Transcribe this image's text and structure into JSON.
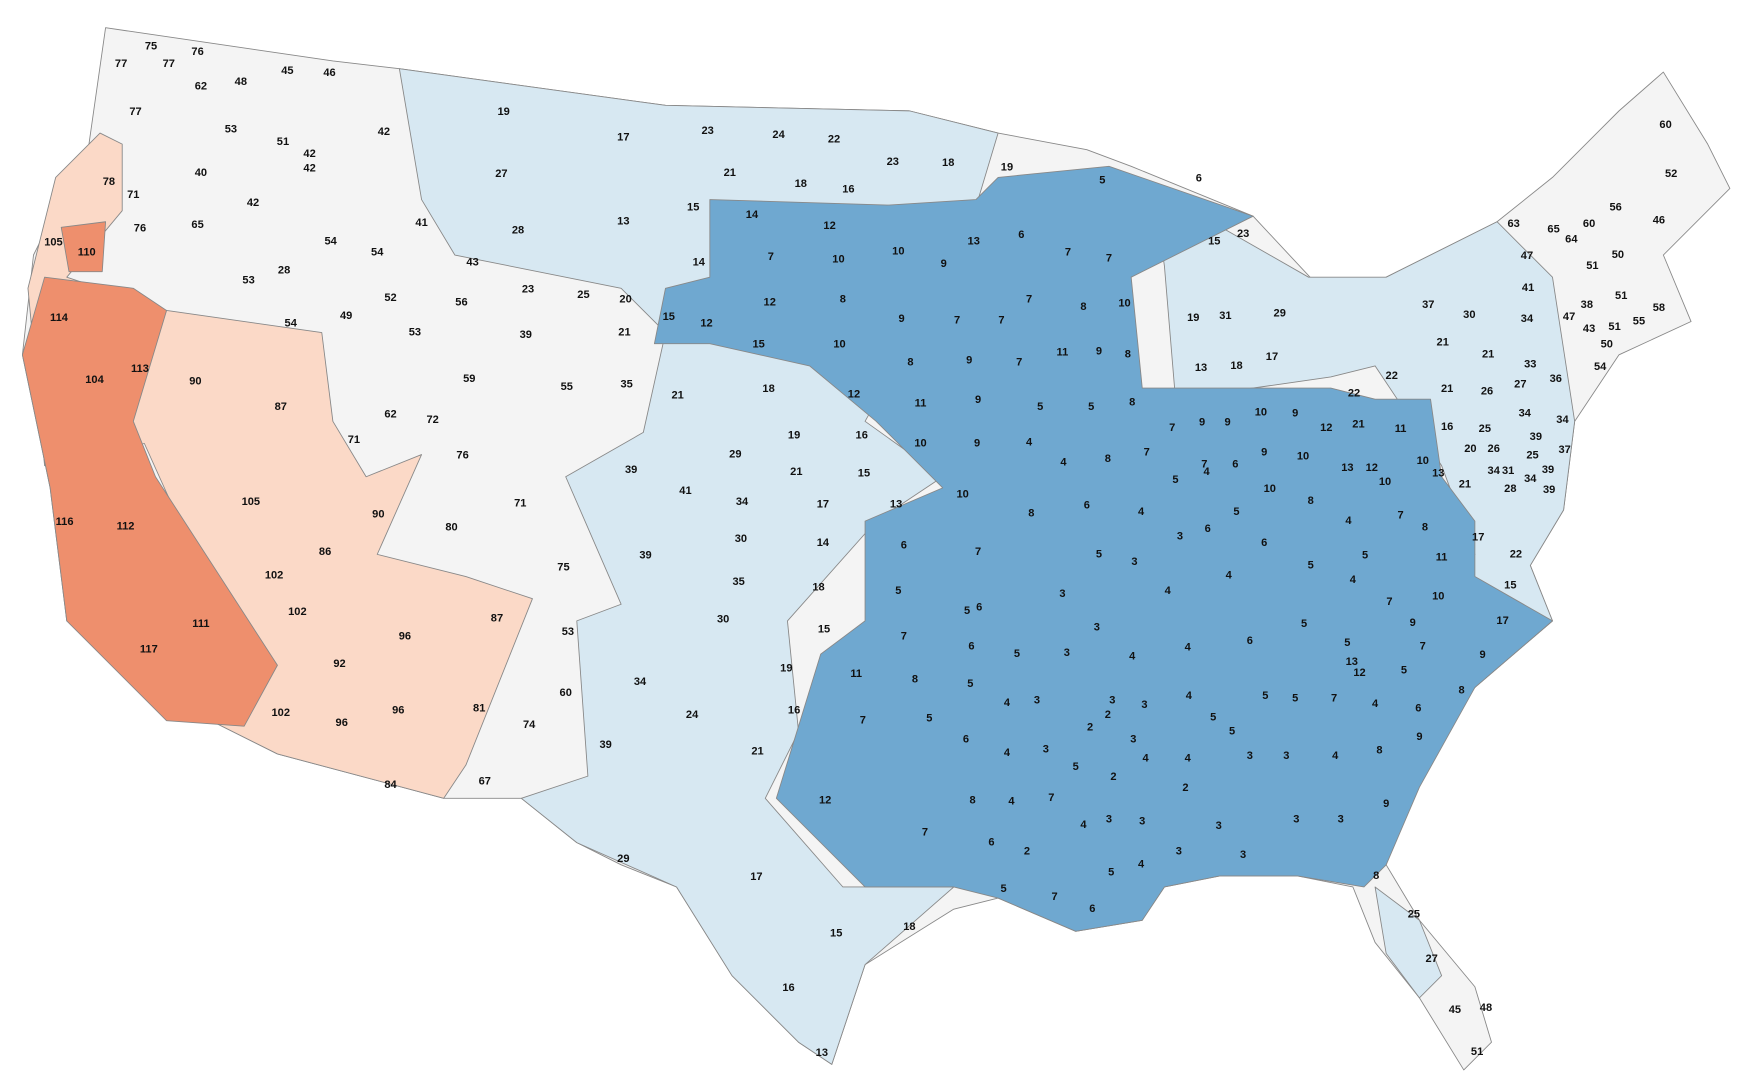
{
  "labels": [
    75,
    76,
    77,
    77,
    62,
    48,
    45,
    46,
    77,
    53,
    51,
    42,
    42,
    42,
    40,
    78,
    71,
    42,
    41,
    105,
    110,
    76,
    65,
    54,
    54,
    28,
    53,
    52,
    49,
    54,
    53,
    43,
    56,
    23,
    25,
    20,
    39,
    21,
    15,
    12,
    59,
    55,
    35,
    21,
    114,
    104,
    113,
    90,
    87,
    71,
    62,
    72,
    76,
    105,
    90,
    80,
    71,
    116,
    112,
    86,
    102,
    75,
    102,
    96,
    111,
    117,
    92,
    96,
    102,
    96,
    87,
    81,
    84,
    74,
    60,
    67,
    53,
    34,
    39,
    19,
    17,
    27,
    23,
    24,
    22,
    23,
    18,
    19,
    21,
    18,
    16,
    13,
    15,
    14,
    28,
    12,
    7,
    10,
    10,
    9,
    13,
    14,
    12,
    8,
    15,
    10,
    9,
    7,
    7,
    18,
    12,
    8,
    9,
    7,
    11,
    9,
    5,
    19,
    16,
    29,
    21,
    15,
    10,
    9,
    4,
    39,
    41,
    34,
    17,
    13,
    30,
    14,
    39,
    35,
    18,
    10,
    8,
    6,
    7,
    5,
    6,
    30,
    15,
    19,
    16,
    24,
    21,
    7,
    11,
    8,
    7,
    5,
    12,
    7,
    29,
    17,
    15,
    18,
    16,
    13,
    5,
    6,
    6,
    7,
    7,
    7,
    8,
    10,
    11,
    9,
    8,
    15,
    23,
    19,
    31,
    29,
    13,
    18,
    17,
    5,
    8,
    4,
    8,
    7,
    7,
    9,
    9,
    10,
    9,
    12,
    7,
    6,
    9,
    10,
    6,
    4,
    5,
    4,
    5,
    10,
    8,
    3,
    6,
    6,
    5,
    3,
    5,
    4,
    4,
    3,
    3,
    4,
    4,
    6,
    5,
    4,
    5,
    4,
    7,
    10,
    12,
    8,
    11,
    11,
    22,
    22,
    21,
    13,
    10,
    13,
    21,
    17,
    22,
    15,
    17,
    7,
    10,
    9,
    7,
    9,
    5,
    13,
    12,
    5,
    8,
    6,
    4,
    7,
    5,
    5,
    4,
    3,
    3,
    2,
    2,
    5,
    5,
    4,
    2,
    3,
    3,
    3,
    4,
    8,
    9,
    4,
    2,
    3,
    3,
    3,
    9,
    5,
    4,
    3,
    3,
    4,
    7,
    8,
    6,
    2,
    3,
    3,
    4,
    8,
    5,
    7,
    6,
    5,
    25,
    27,
    45,
    48,
    51,
    5,
    4,
    3,
    4,
    6,
    5,
    5,
    3,
    6,
    3,
    60,
    52,
    56,
    46,
    63,
    65,
    64,
    60,
    51,
    50,
    47,
    41,
    37,
    30,
    34,
    38,
    51,
    58,
    47,
    43,
    51,
    55,
    50,
    54,
    21,
    21,
    33,
    36,
    27,
    26,
    21,
    16,
    25,
    34,
    34,
    20,
    26,
    39,
    25,
    37,
    31,
    34,
    39,
    34,
    28,
    39
  ]
}
